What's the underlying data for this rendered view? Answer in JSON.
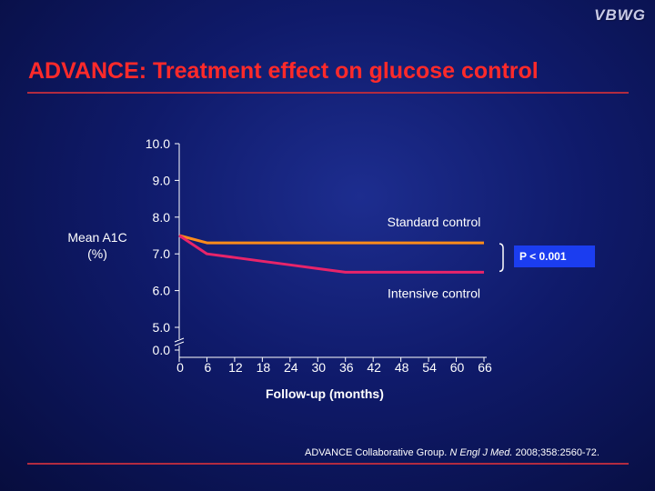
{
  "logo": "VBWG",
  "title": "ADVANCE: Treatment effect on glucose control",
  "chart_data": {
    "type": "line",
    "ylabel": "Mean A1C (%)",
    "xlabel": "Follow-up (months)",
    "y_ticks": [
      "10.0",
      "9.0",
      "8.0",
      "7.0",
      "6.0",
      "5.0",
      "0.0"
    ],
    "x_ticks": [
      "0",
      "6",
      "12",
      "18",
      "24",
      "30",
      "36",
      "42",
      "48",
      "54",
      "60",
      "66"
    ],
    "ylim": [
      5.0,
      10.0
    ],
    "xlim": [
      0,
      66
    ],
    "axis_break": true,
    "grid": false,
    "series": [
      {
        "name": "Standard control",
        "color": "#ff8c1a",
        "x": [
          0,
          6,
          12,
          18,
          24,
          30,
          36,
          42,
          48,
          54,
          60,
          66
        ],
        "y": [
          7.5,
          7.3,
          7.3,
          7.3,
          7.3,
          7.3,
          7.3,
          7.3,
          7.3,
          7.3,
          7.3,
          7.3
        ]
      },
      {
        "name": "Intensive control",
        "color": "#e8246a",
        "x": [
          0,
          6,
          12,
          18,
          24,
          30,
          36,
          42,
          48,
          54,
          60,
          66
        ],
        "y": [
          7.5,
          7.0,
          6.9,
          6.8,
          6.7,
          6.6,
          6.5,
          6.5,
          6.5,
          6.5,
          6.5,
          6.5
        ]
      }
    ],
    "annotation": "P < 0.001"
  },
  "citation": {
    "prefix": "ADVANCE Collaborative Group. ",
    "journal": "N Engl J Med.",
    "suffix": " 2008;358:2560-72."
  }
}
